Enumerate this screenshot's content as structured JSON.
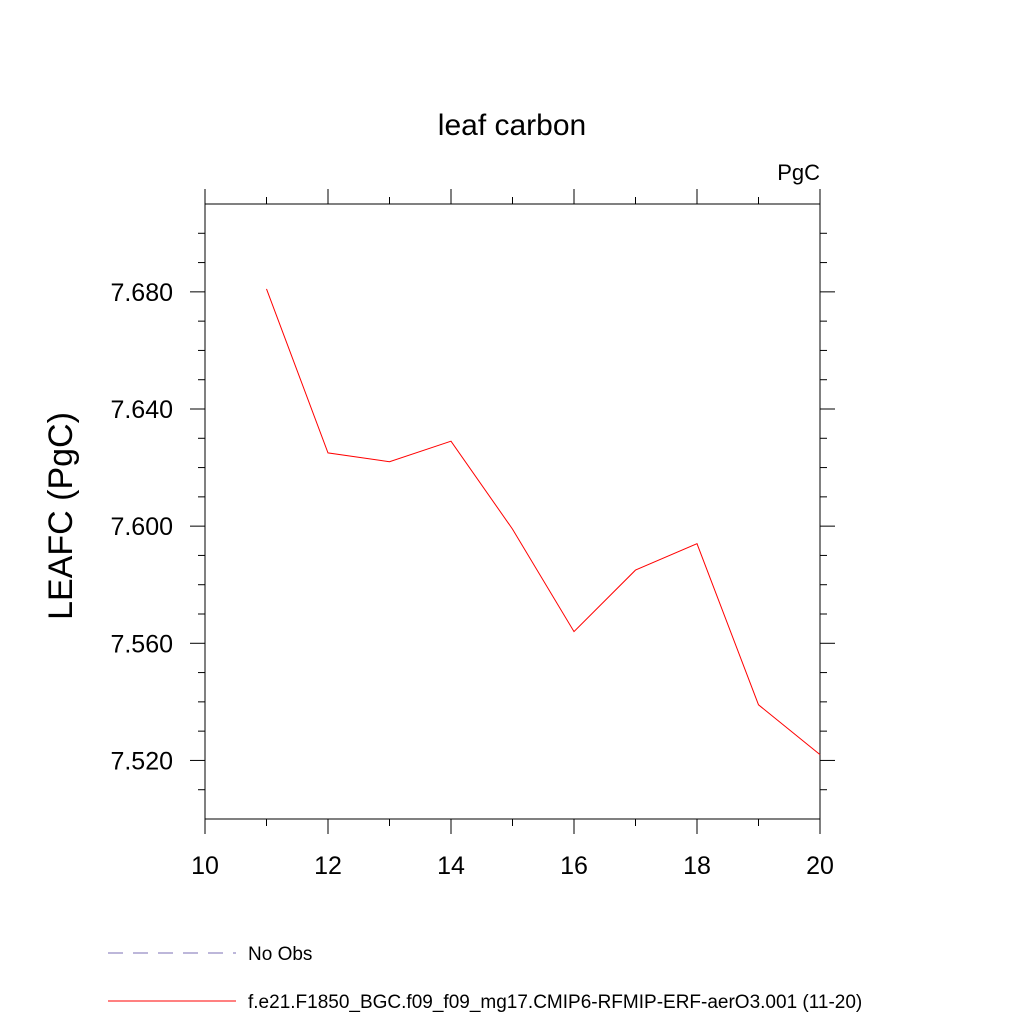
{
  "chart_data": {
    "type": "line",
    "title": "leaf carbon",
    "units_label": "PgC",
    "xlabel": "",
    "ylabel": "LEAFC  (PgC)",
    "xlim": [
      10,
      20
    ],
    "ylim": [
      7.5,
      7.71
    ],
    "xticks": [
      10,
      12,
      14,
      16,
      18,
      20
    ],
    "xtick_labels": [
      "10",
      "12",
      "14",
      "16",
      "18",
      "20"
    ],
    "yticks": [
      7.52,
      7.56,
      7.6,
      7.64,
      7.68
    ],
    "ytick_labels": [
      "7.520",
      "7.560",
      "7.600",
      "7.640",
      "7.680"
    ],
    "grid": false,
    "legend_position": "bottom",
    "series": [
      {
        "name": "f.e21.F1850_BGC.f09_f09_mg17.CMIP6-RFMIP-ERF-aerO3.001 (11-20)",
        "color": "#ff0000",
        "dash": "solid",
        "x": [
          11,
          12,
          13,
          14,
          15,
          16,
          17,
          18,
          19,
          20
        ],
        "values": [
          7.681,
          7.625,
          7.622,
          7.629,
          7.599,
          7.564,
          7.585,
          7.594,
          7.539,
          7.522
        ]
      }
    ],
    "legend": [
      {
        "label": "No Obs",
        "color": "#7b6fb5",
        "dash": "dashed"
      },
      {
        "label": "f.e21.F1850_BGC.f09_f09_mg17.CMIP6-RFMIP-ERF-aerO3.001 (11-20)",
        "color": "#ff0000",
        "dash": "solid"
      }
    ]
  }
}
